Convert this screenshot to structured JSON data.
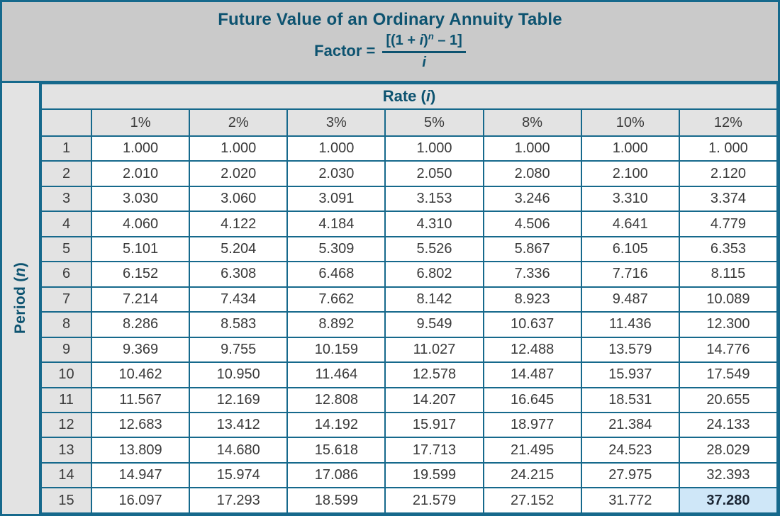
{
  "header": {
    "title": "Future Value of an Ordinary Annuity Table",
    "formula": {
      "label": "Factor =",
      "num_open": "[(1 + ",
      "num_i": "i",
      "num_close": ")",
      "num_sup": "n",
      "num_tail": " – 1]",
      "den": "i"
    }
  },
  "axes": {
    "period_prefix": "Period (",
    "period_var": "n",
    "period_suffix": ")",
    "rate_prefix": "Rate (",
    "rate_var": "i",
    "rate_suffix": ")"
  },
  "chart_data": {
    "type": "table",
    "title": "Future Value of an Ordinary Annuity Table",
    "column_axis_label": "Rate (i)",
    "row_axis_label": "Period (n)",
    "columns": [
      "1%",
      "2%",
      "3%",
      "5%",
      "8%",
      "10%",
      "12%"
    ],
    "rows": [
      {
        "period": "1",
        "values": [
          "1.000",
          "1.000",
          "1.000",
          "1.000",
          "1.000",
          "1.000",
          "1. 000"
        ]
      },
      {
        "period": "2",
        "values": [
          "2.010",
          "2.020",
          "2.030",
          "2.050",
          "2.080",
          "2.100",
          "2.120"
        ]
      },
      {
        "period": "3",
        "values": [
          "3.030",
          "3.060",
          "3.091",
          "3.153",
          "3.246",
          "3.310",
          "3.374"
        ]
      },
      {
        "period": "4",
        "values": [
          "4.060",
          "4.122",
          "4.184",
          "4.310",
          "4.506",
          "4.641",
          "4.779"
        ]
      },
      {
        "period": "5",
        "values": [
          "5.101",
          "5.204",
          "5.309",
          "5.526",
          "5.867",
          "6.105",
          "6.353"
        ]
      },
      {
        "period": "6",
        "values": [
          "6.152",
          "6.308",
          "6.468",
          "6.802",
          "7.336",
          "7.716",
          "8.115"
        ]
      },
      {
        "period": "7",
        "values": [
          "7.214",
          "7.434",
          "7.662",
          "8.142",
          "8.923",
          "9.487",
          "10.089"
        ]
      },
      {
        "period": "8",
        "values": [
          "8.286",
          "8.583",
          "8.892",
          "9.549",
          "10.637",
          "11.436",
          "12.300"
        ]
      },
      {
        "period": "9",
        "values": [
          "9.369",
          "9.755",
          "10.159",
          "11.027",
          "12.488",
          "13.579",
          "14.776"
        ]
      },
      {
        "period": "10",
        "values": [
          "10.462",
          "10.950",
          "11.464",
          "12.578",
          "14.487",
          "15.937",
          "17.549"
        ]
      },
      {
        "period": "11",
        "values": [
          "11.567",
          "12.169",
          "12.808",
          "14.207",
          "16.645",
          "18.531",
          "20.655"
        ]
      },
      {
        "period": "12",
        "values": [
          "12.683",
          "13.412",
          "14.192",
          "15.917",
          "18.977",
          "21.384",
          "24.133"
        ]
      },
      {
        "period": "13",
        "values": [
          "13.809",
          "14.680",
          "15.618",
          "17.713",
          "21.495",
          "24.523",
          "28.029"
        ]
      },
      {
        "period": "14",
        "values": [
          "14.947",
          "15.974",
          "17.086",
          "19.599",
          "24.215",
          "27.975",
          "32.393"
        ]
      },
      {
        "period": "15",
        "values": [
          "16.097",
          "17.293",
          "18.599",
          "21.579",
          "27.152",
          "31.772",
          "37.280"
        ]
      }
    ],
    "highlight": {
      "row_index": 14,
      "col_index": 6,
      "period": "15",
      "rate": "12%",
      "value": "37.280"
    }
  },
  "colors": {
    "border_teal": "#16698c",
    "text_teal": "#0d5370",
    "band_gray": "#cacaca",
    "cell_gray": "#e3e3e3",
    "cell_white": "#ffffff",
    "value_text": "#3a3a3a",
    "highlight_bg": "#cfe7f8",
    "highlight_text": "#1b2634"
  }
}
